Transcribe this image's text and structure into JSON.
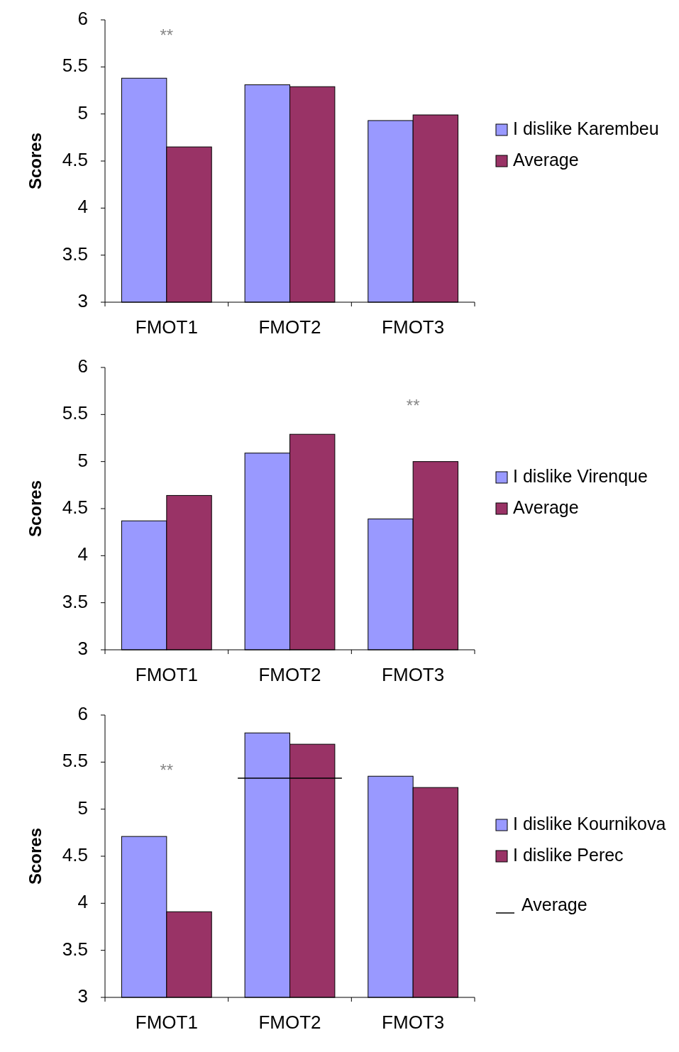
{
  "chart_data": [
    {
      "type": "bar",
      "ylabel": "Scores",
      "categories": [
        "FMOT1",
        "FMOT2",
        "FMOT3"
      ],
      "ylim": [
        3,
        6
      ],
      "yticks": [
        3,
        3.5,
        4,
        4.5,
        5,
        5.5,
        6
      ],
      "grid": false,
      "legend": "right",
      "annotations": [
        "**"
      ],
      "series": [
        {
          "name": "I dislike Karembeu",
          "color": "#9999ff",
          "values": [
            5.38,
            5.31,
            4.93
          ]
        },
        {
          "name": "Average",
          "color": "#993366",
          "values": [
            4.65,
            5.29,
            4.99
          ]
        }
      ]
    },
    {
      "type": "bar",
      "ylabel": "Scores",
      "categories": [
        "FMOT1",
        "FMOT2",
        "FMOT3"
      ],
      "ylim": [
        3,
        6
      ],
      "yticks": [
        3,
        3.5,
        4,
        4.5,
        5,
        5.5,
        6
      ],
      "grid": false,
      "legend": "right",
      "annotations": [
        "**"
      ],
      "series": [
        {
          "name": "I dislike Virenque",
          "color": "#9999ff",
          "values": [
            4.37,
            5.09,
            4.39
          ]
        },
        {
          "name": "Average",
          "color": "#993366",
          "values": [
            4.64,
            5.29,
            5.0
          ]
        }
      ]
    },
    {
      "type": "bar",
      "ylabel": "Scores",
      "categories": [
        "FMOT1",
        "FMOT2",
        "FMOT3"
      ],
      "ylim": [
        3,
        6
      ],
      "yticks": [
        3,
        3.5,
        4,
        4.5,
        5,
        5.5,
        6
      ],
      "grid": false,
      "legend": "right",
      "annotations": [
        "**"
      ],
      "ref_lines": [
        {
          "axis": "y",
          "value": 5.33,
          "label": "Average",
          "color": "#000000"
        }
      ],
      "series": [
        {
          "name": "I dislike Kournikova",
          "color": "#9999ff",
          "values": [
            4.71,
            5.81,
            5.35
          ]
        },
        {
          "name": "I dislike Perec",
          "color": "#993366",
          "values": [
            3.91,
            5.69,
            5.23
          ]
        }
      ]
    }
  ]
}
